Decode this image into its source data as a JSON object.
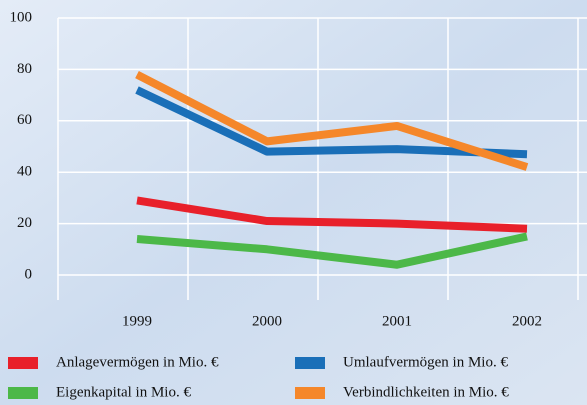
{
  "chart_data": {
    "type": "line",
    "categories": [
      "1999",
      "2000",
      "2001",
      "2002"
    ],
    "series": [
      {
        "name": "Anlagevermögen in Mio. €",
        "color": "#e8202a",
        "values": [
          29,
          21,
          20,
          18
        ]
      },
      {
        "name": "Umlaufvermögen in Mio. €",
        "color": "#1a6fb8",
        "values": [
          72,
          48,
          49,
          47
        ]
      },
      {
        "name": "Eigenkapital in Mio. €",
        "color": "#4cb848",
        "values": [
          14,
          10,
          4,
          15
        ]
      },
      {
        "name": "Verbindlichkeiten in Mio. €",
        "color": "#f5872a",
        "values": [
          78,
          52,
          58,
          42
        ]
      }
    ],
    "ylim": [
      0,
      100
    ],
    "yticks": [
      0,
      20,
      40,
      60,
      80,
      100
    ],
    "grid": true,
    "legend": "bottom"
  }
}
